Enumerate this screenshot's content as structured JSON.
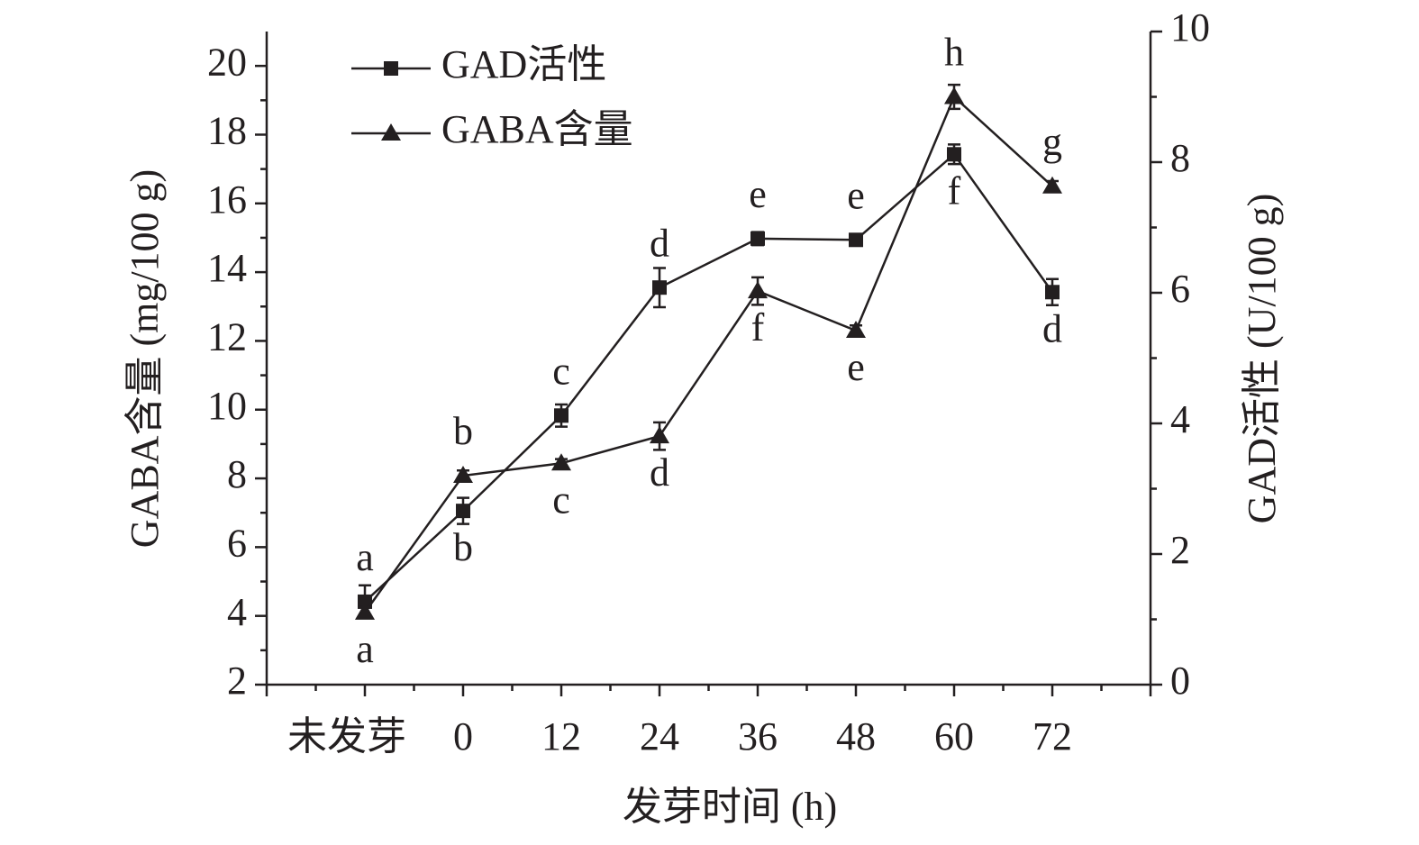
{
  "chart_data": {
    "type": "line",
    "x_label": "发芽时间 (h)",
    "y_label": "GABA含量 (mg/100 g)",
    "y2_label": "GAD活性 (U/100 g)",
    "categories": [
      "未发芽",
      "0",
      "12",
      "24",
      "36",
      "48",
      "60",
      "72"
    ],
    "series": [
      {
        "name": "GAD活性",
        "color": "#231f20",
        "marker": "square",
        "axis": "y2",
        "values": [
          1.27,
          2.66,
          4.12,
          6.08,
          6.83,
          6.81,
          8.12,
          6.01
        ],
        "errors": [
          0.25,
          0.2,
          0.17,
          0.3,
          0.1,
          0.06,
          0.15,
          0.2
        ],
        "labels": [
          "a",
          "b",
          "c",
          "d",
          "e",
          "e",
          "f",
          "d"
        ]
      },
      {
        "name": "GABA含量",
        "color": "#231f20",
        "marker": "triangle",
        "values": [
          4.1,
          8.08,
          8.44,
          9.23,
          13.45,
          12.3,
          19.1,
          16.5
        ],
        "errors": [
          0.15,
          0.15,
          0.12,
          0.4,
          0.4,
          0.15,
          0.35,
          0.15
        ],
        "labels": [
          "a",
          "b",
          "c",
          "d",
          "f",
          "e",
          "h",
          "g"
        ]
      }
    ],
    "ylim": [
      2,
      21
    ],
    "yticks": [
      2,
      4,
      6,
      8,
      10,
      12,
      14,
      16,
      18,
      20
    ],
    "y2lim": [
      0,
      10
    ],
    "y2ticks": [
      0,
      2,
      4,
      6,
      8,
      10
    ],
    "legend": "upper left"
  }
}
